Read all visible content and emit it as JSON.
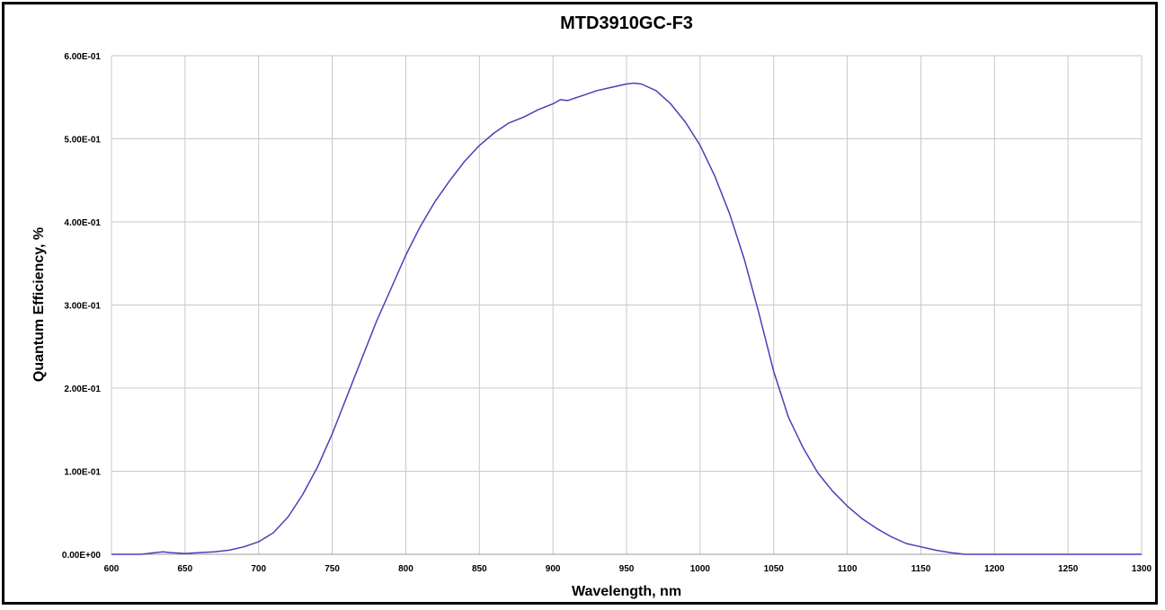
{
  "chart_data": {
    "type": "line",
    "title": "MTD3910GC-F3",
    "xlabel": "Wavelength, nm",
    "ylabel": "Quantum Efficiency, %",
    "xlim": [
      600,
      1300
    ],
    "ylim": [
      0,
      0.6
    ],
    "x_ticks": [
      600,
      650,
      700,
      750,
      800,
      850,
      900,
      950,
      1000,
      1050,
      1100,
      1150,
      1200,
      1250,
      1300
    ],
    "y_ticks": [
      0,
      0.1,
      0.2,
      0.3,
      0.4,
      0.5,
      0.6
    ],
    "x_tick_labels": [
      "600",
      "650",
      "700",
      "750",
      "800",
      "850",
      "900",
      "950",
      "1000",
      "1050",
      "1100",
      "1150",
      "1200",
      "1250",
      "1300"
    ],
    "y_tick_labels": [
      "0.00E+00",
      "1.00E-01",
      "2.00E-01",
      "3.00E-01",
      "4.00E-01",
      "5.00E-01",
      "6.00E-01"
    ],
    "grid": true,
    "legend": "none",
    "series": [
      {
        "color": "#4a3fb8",
        "x": [
          600,
          620,
          630,
          635,
          640,
          650,
          660,
          670,
          680,
          690,
          700,
          710,
          720,
          730,
          740,
          750,
          760,
          770,
          780,
          790,
          800,
          810,
          820,
          830,
          840,
          850,
          860,
          870,
          880,
          890,
          900,
          905,
          910,
          920,
          930,
          940,
          950,
          955,
          960,
          970,
          980,
          990,
          1000,
          1010,
          1020,
          1030,
          1040,
          1050,
          1060,
          1070,
          1080,
          1090,
          1100,
          1110,
          1120,
          1130,
          1140,
          1150,
          1160,
          1170,
          1180,
          1190,
          1200,
          1250,
          1300
        ],
        "y": [
          0.0,
          0.0,
          0.002,
          0.003,
          0.002,
          0.001,
          0.002,
          0.003,
          0.005,
          0.009,
          0.015,
          0.026,
          0.045,
          0.072,
          0.105,
          0.145,
          0.19,
          0.235,
          0.28,
          0.32,
          0.36,
          0.395,
          0.425,
          0.45,
          0.473,
          0.492,
          0.507,
          0.519,
          0.526,
          0.535,
          0.542,
          0.547,
          0.546,
          0.552,
          0.558,
          0.562,
          0.566,
          0.567,
          0.566,
          0.558,
          0.542,
          0.52,
          0.492,
          0.455,
          0.41,
          0.355,
          0.29,
          0.22,
          0.165,
          0.128,
          0.098,
          0.076,
          0.058,
          0.043,
          0.031,
          0.021,
          0.013,
          0.009,
          0.005,
          0.002,
          0.0,
          0.0,
          0.0,
          0.0,
          0.0
        ]
      }
    ]
  }
}
